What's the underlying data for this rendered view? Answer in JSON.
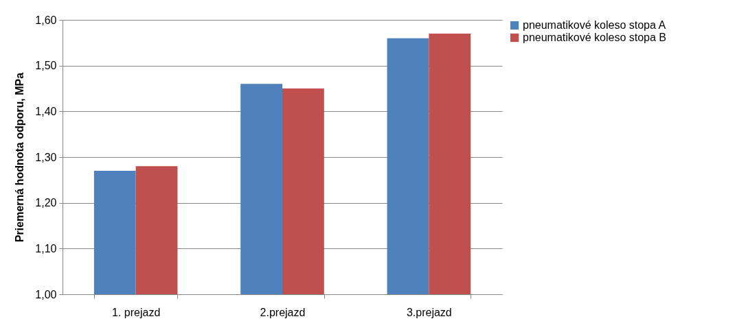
{
  "chart_data": {
    "type": "bar",
    "ylabel": "Priemerná hodnota odporu,   MPa",
    "categories": [
      "1. prejazd",
      "2.prejazd",
      "3.prejazd"
    ],
    "series": [
      {
        "name": "pneumatikové koleso stopa A",
        "color": "#4f81bd",
        "values": [
          1.27,
          1.46,
          1.56
        ]
      },
      {
        "name": "pneumatikové koleso stopa B",
        "color": "#c0504d",
        "values": [
          1.28,
          1.45,
          1.57
        ]
      }
    ],
    "ylim": [
      1.0,
      1.6
    ],
    "yticks": [
      {
        "value": 1.0,
        "label": "1,00"
      },
      {
        "value": 1.1,
        "label": "1,10"
      },
      {
        "value": 1.2,
        "label": "1,20"
      },
      {
        "value": 1.3,
        "label": "1,30"
      },
      {
        "value": 1.4,
        "label": "1,40"
      },
      {
        "value": 1.5,
        "label": "1,50"
      },
      {
        "value": 1.6,
        "label": "1,60"
      }
    ],
    "grid": "y",
    "legend": "right"
  }
}
